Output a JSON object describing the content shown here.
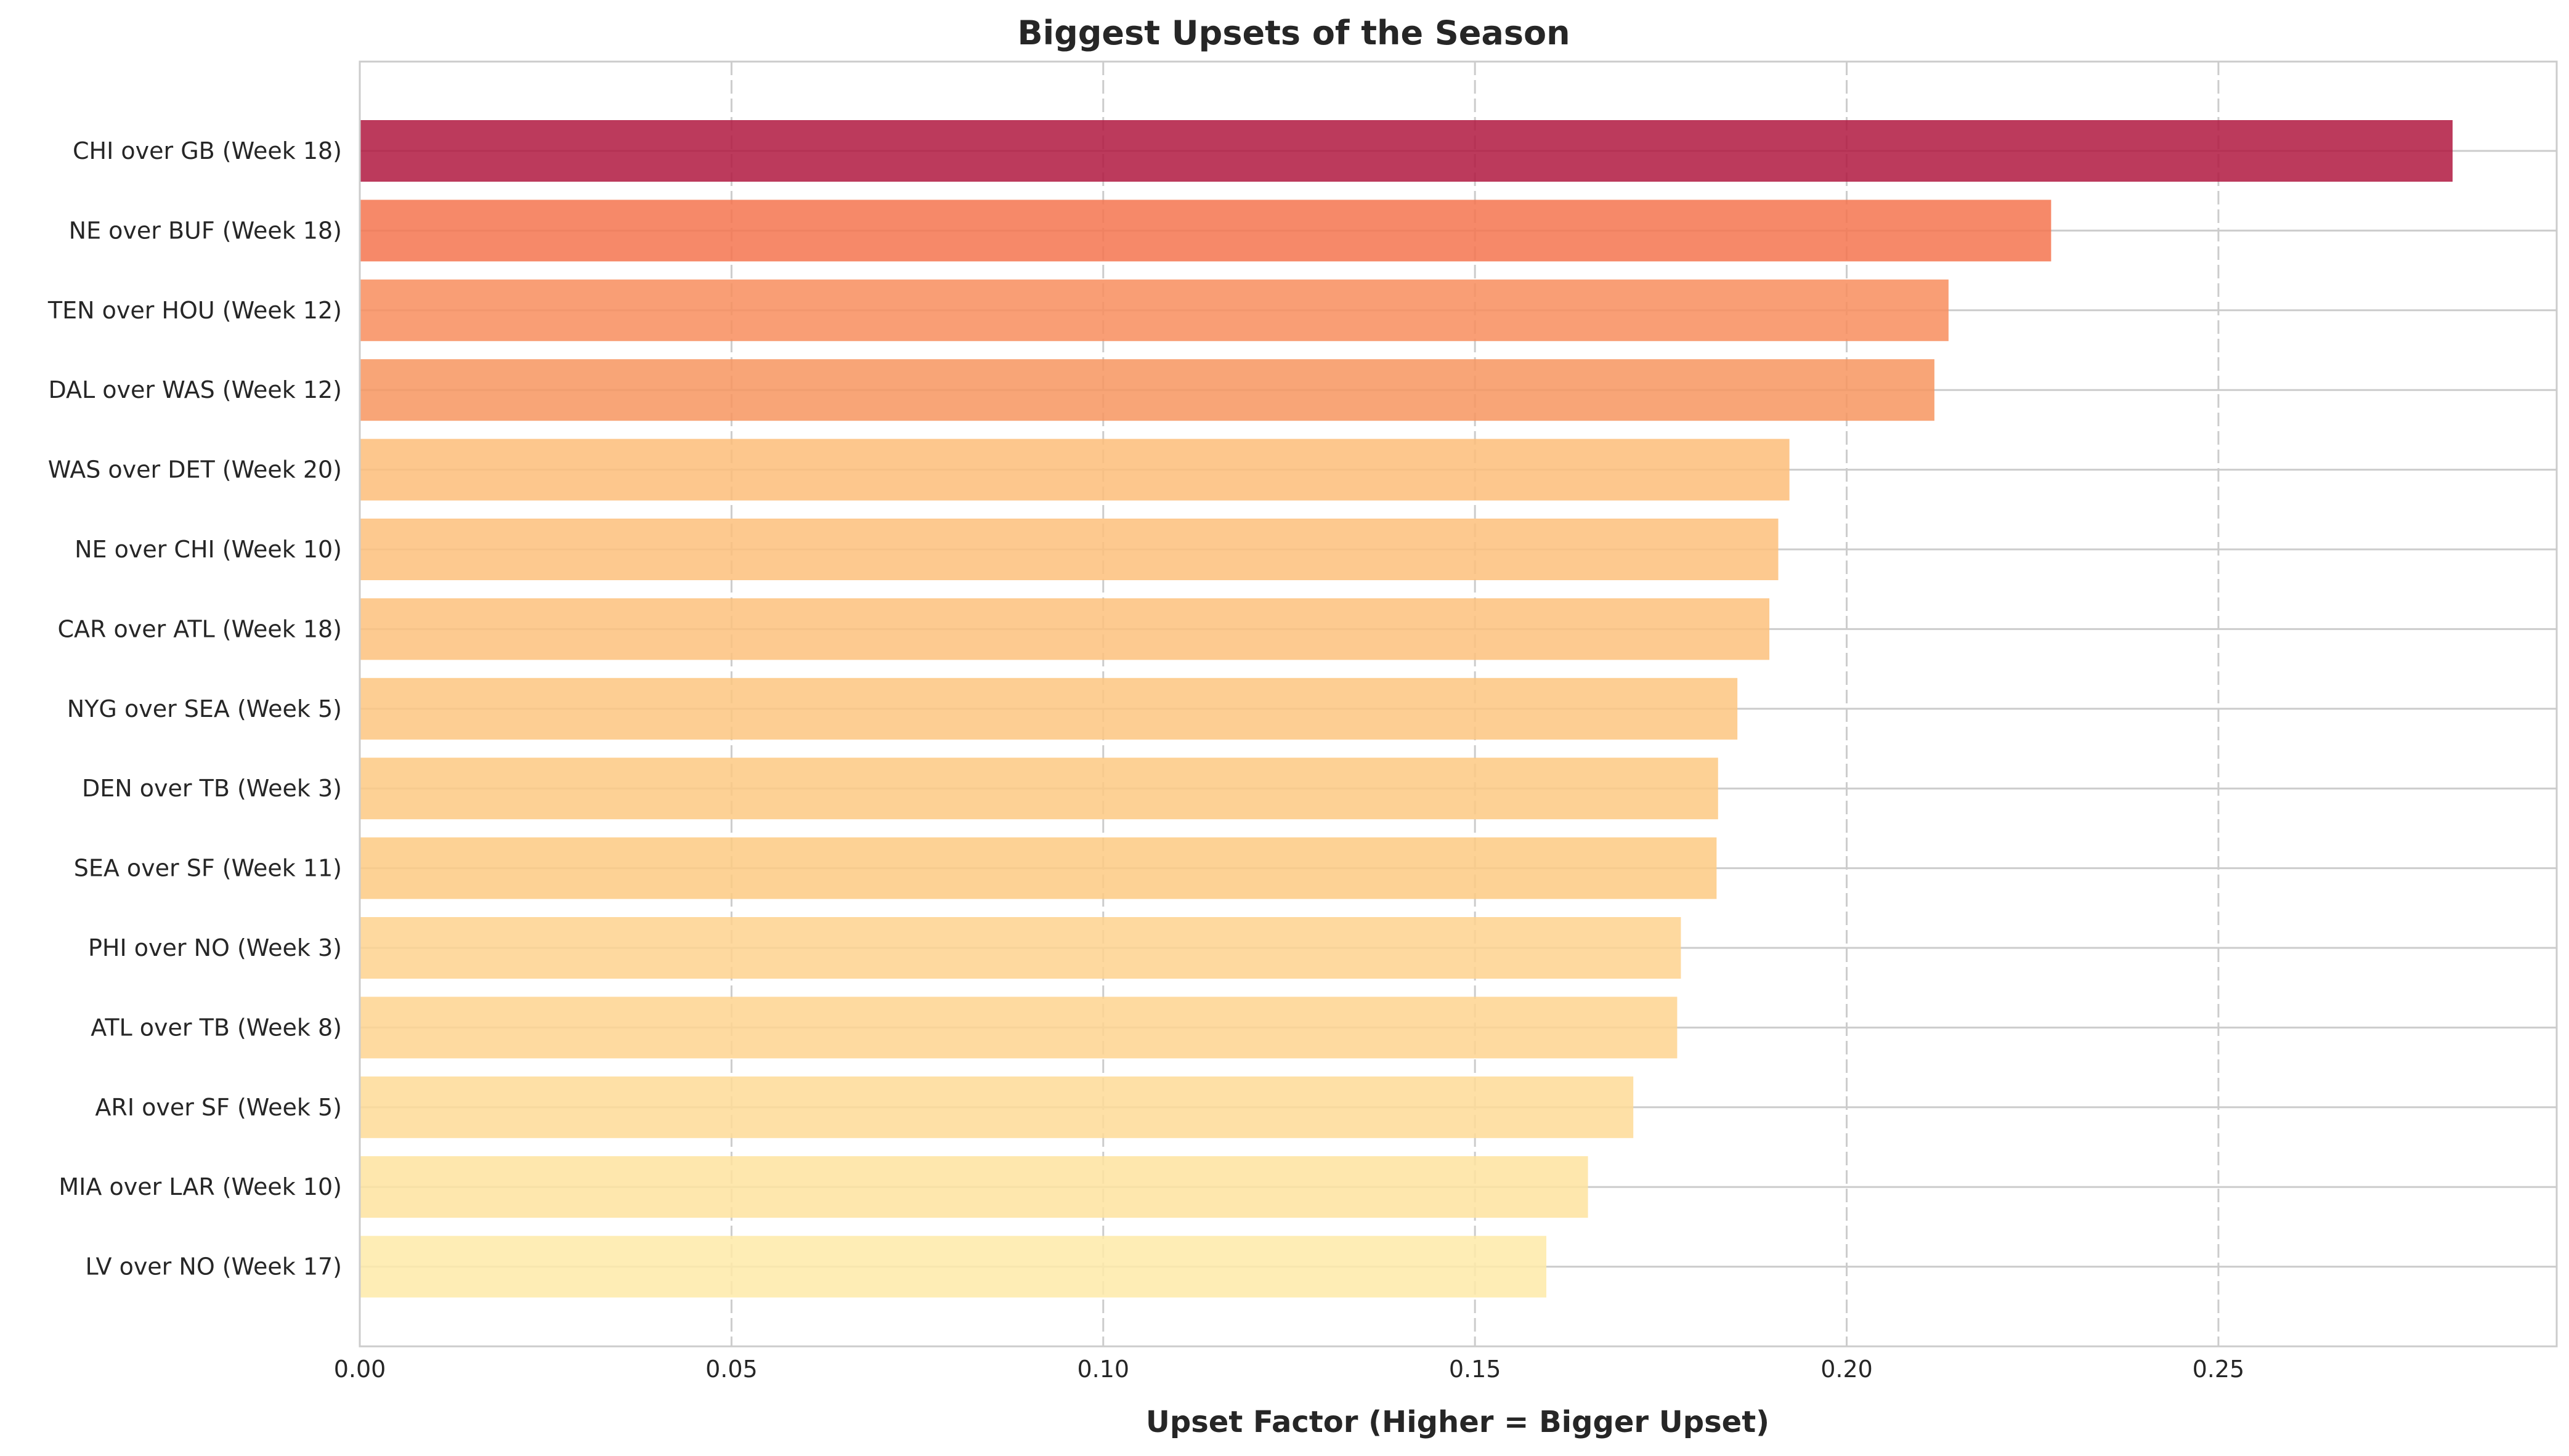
{
  "chart_data": {
    "type": "bar",
    "orientation": "horizontal",
    "title": "Biggest Upsets of the Season",
    "xlabel": "Upset Factor (Higher = Bigger Upset)",
    "ylabel": "",
    "xlim": [
      0,
      0.2955
    ],
    "xticks": [
      0.0,
      0.05,
      0.1,
      0.15,
      0.2,
      0.25
    ],
    "xtick_labels": [
      "0.00",
      "0.05",
      "0.10",
      "0.15",
      "0.20",
      "0.25"
    ],
    "grid": true,
    "categories": [
      "CHI over GB (Week 18)",
      "NE over BUF (Week 18)",
      "TEN over HOU (Week 12)",
      "DAL over WAS (Week 12)",
      "WAS over DET (Week 20)",
      "NE over CHI (Week 10)",
      "CAR over ATL (Week 18)",
      "NYG over SEA (Week 5)",
      "DEN over TB (Week 3)",
      "SEA over SF (Week 11)",
      "PHI over NO (Week 3)",
      "ATL over TB (Week 8)",
      "ARI over SF (Week 5)",
      "MIA over LAR (Week 10)",
      "LV over NO (Week 17)"
    ],
    "values": [
      0.2815,
      0.2275,
      0.2137,
      0.2118,
      0.1923,
      0.1908,
      0.1896,
      0.1853,
      0.1827,
      0.1825,
      0.1777,
      0.1772,
      0.1713,
      0.1652,
      0.1596
    ],
    "colors": [
      "#b0173f",
      "#f4744f",
      "#f88d5d",
      "#f7955f",
      "#fdbd79",
      "#fdbf7b",
      "#fdc17c",
      "#fdc680",
      "#fdc982",
      "#fdca83",
      "#fed28e",
      "#fed38f",
      "#fedb97",
      "#fee39f",
      "#feeaa8"
    ]
  }
}
